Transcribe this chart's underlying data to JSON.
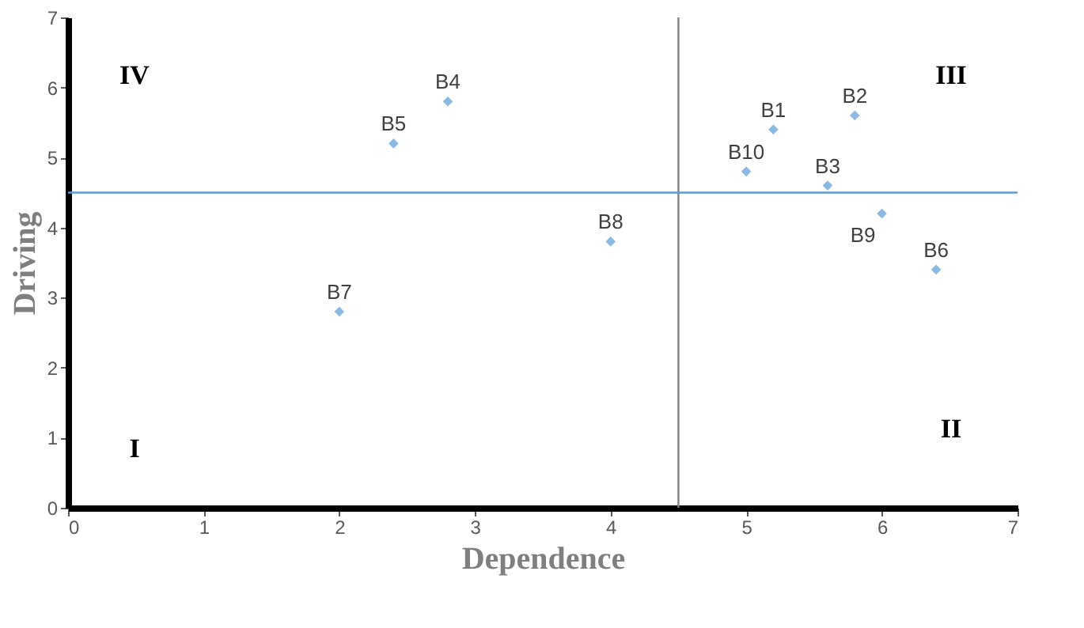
{
  "chart_data": {
    "type": "scatter",
    "xlabel": "Dependence",
    "ylabel": "Driving",
    "x": [
      5.2,
      5.8,
      5.6,
      2.8,
      2.4,
      6.4,
      2,
      4,
      6,
      5
    ],
    "series": [
      {
        "color": "#5b9bd5",
        "values": [
          5.4,
          5.6,
          4.6,
          5.8,
          5.2,
          3.4,
          2.8,
          3.8,
          4.2,
          4.8
        ]
      }
    ],
    "marker": "diamond",
    "grid": false,
    "xlim": [
      0,
      7
    ],
    "ylim": [
      0,
      7
    ],
    "xticks": [
      0,
      1,
      2,
      3,
      4,
      5,
      6,
      7
    ],
    "yticks": [
      0,
      1,
      2,
      3,
      4,
      5,
      6,
      7
    ],
    "ref_lines": [
      {
        "axis": "x",
        "value": 4.5,
        "color": "#808080"
      },
      {
        "axis": "y",
        "value": 4.5,
        "color": "#5b9bd5"
      }
    ],
    "annotations": [
      {
        "text": "B1",
        "x": 5.2,
        "y": 5.4
      },
      {
        "text": "B2",
        "x": 5.8,
        "y": 5.6
      },
      {
        "text": "B3",
        "x": 5.6,
        "y": 4.6
      },
      {
        "text": "B4",
        "x": 2.8,
        "y": 5.8
      },
      {
        "text": "B5",
        "x": 2.4,
        "y": 5.2
      },
      {
        "text": "B6",
        "x": 6.4,
        "y": 3.4
      },
      {
        "text": "B7",
        "x": 2,
        "y": 2.8
      },
      {
        "text": "B8",
        "x": 4,
        "y": 3.8
      },
      {
        "text": "B9",
        "x": 6,
        "y": 4.2
      },
      {
        "text": "B10",
        "x": 5,
        "y": 4.8
      },
      "I",
      "II",
      "III",
      "IV"
    ]
  }
}
